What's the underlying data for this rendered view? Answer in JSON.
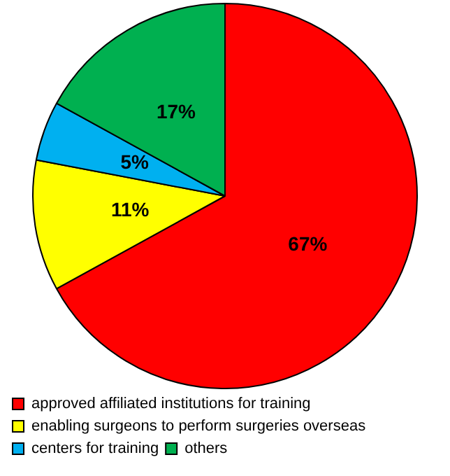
{
  "chart_data": {
    "type": "pie",
    "categories": [
      "approved affiliated institutions for training",
      "enabling surgeons to perform surgeries overseas",
      "centers for training",
      "others"
    ],
    "values": [
      67,
      11,
      5,
      17
    ],
    "colors": [
      "#ff0000",
      "#ffff00",
      "#00b0f0",
      "#00b050"
    ],
    "value_labels": [
      "67%",
      "11%",
      "5%",
      "17%"
    ],
    "legend": "bottom"
  }
}
